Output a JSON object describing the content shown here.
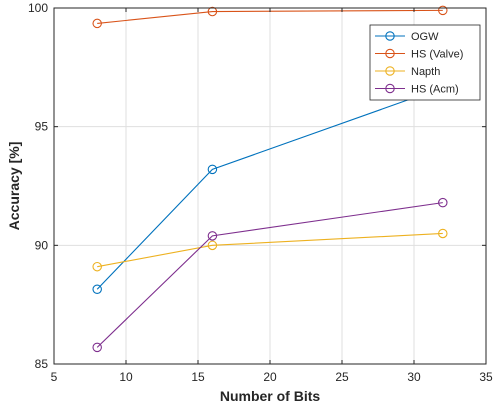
{
  "chart_data": {
    "type": "line",
    "title": "",
    "xlabel": "Number of Bits",
    "ylabel": "Accuracy [%]",
    "xlim": [
      5,
      35
    ],
    "ylim": [
      85,
      100
    ],
    "xticks": [
      5,
      10,
      15,
      20,
      25,
      30,
      35
    ],
    "yticks": [
      85,
      90,
      95,
      100
    ],
    "grid": true,
    "legend_position": "top-right",
    "x": [
      8,
      16,
      32
    ],
    "series": [
      {
        "name": "OGW",
        "color": "#0072BD",
        "values": [
          88.15,
          93.2,
          96.65
        ]
      },
      {
        "name": "HS (Valve)",
        "color": "#D95319",
        "values": [
          99.35,
          99.85,
          99.9
        ]
      },
      {
        "name": "Napth",
        "color": "#EDB120",
        "values": [
          89.1,
          90.0,
          90.5
        ]
      },
      {
        "name": "HS (Acm)",
        "color": "#7E2F8E",
        "values": [
          85.7,
          90.4,
          91.8
        ]
      }
    ]
  }
}
